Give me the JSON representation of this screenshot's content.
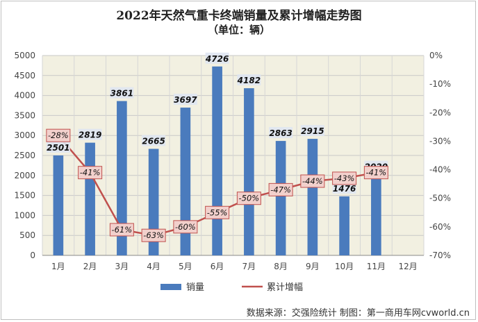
{
  "title": "2022年天然气重卡终端销量及累计增幅走势图",
  "subtitle": "（单位：辆）",
  "source": "数据来源：交强险统计 制图：第一商用车网cvworld.cn",
  "colors": {
    "bar": "#4a7bbd",
    "line": "#c0504d",
    "plot_bg": "#f2f0e1",
    "label_bg": "#f2d0cc",
    "label_border": "#c0504d"
  },
  "chart_data": {
    "type": "bar",
    "categories": [
      "1月",
      "2月",
      "3月",
      "4月",
      "5月",
      "6月",
      "7月",
      "8月",
      "9月",
      "10月",
      "11月",
      "12月"
    ],
    "series": [
      {
        "name": "销量",
        "type": "bar",
        "axis": "left",
        "values": [
          2501,
          2819,
          3861,
          2665,
          3697,
          4726,
          4182,
          2863,
          2915,
          1476,
          2020,
          null
        ],
        "labels": [
          "2501",
          "2819",
          "3861",
          "2665",
          "3697",
          "4726",
          "4182",
          "2863",
          "2915",
          "1476",
          "2020",
          ""
        ]
      },
      {
        "name": "累计增幅",
        "type": "line",
        "axis": "right",
        "values": [
          -28,
          -41,
          -61,
          -63,
          -60,
          -55,
          -50,
          -47,
          -44,
          -43,
          -41,
          null
        ],
        "labels": [
          "-28%",
          "-41%",
          "-61%",
          "-63%",
          "-60%",
          "-55%",
          "-50%",
          "-47%",
          "-44%",
          "-43%",
          "-41%",
          ""
        ]
      }
    ],
    "y_left": {
      "min": 0,
      "max": 5000,
      "ticks": [
        "0",
        "500",
        "1000",
        "1500",
        "2000",
        "2500",
        "3000",
        "3500",
        "4000",
        "4500",
        "5000"
      ]
    },
    "y_right": {
      "min": -70,
      "max": 0,
      "ticks": [
        "-70%",
        "-60%",
        "-50%",
        "-40%",
        "-30%",
        "-20%",
        "-10%",
        "0%"
      ]
    },
    "grid": true,
    "legend_position": "bottom-left"
  }
}
